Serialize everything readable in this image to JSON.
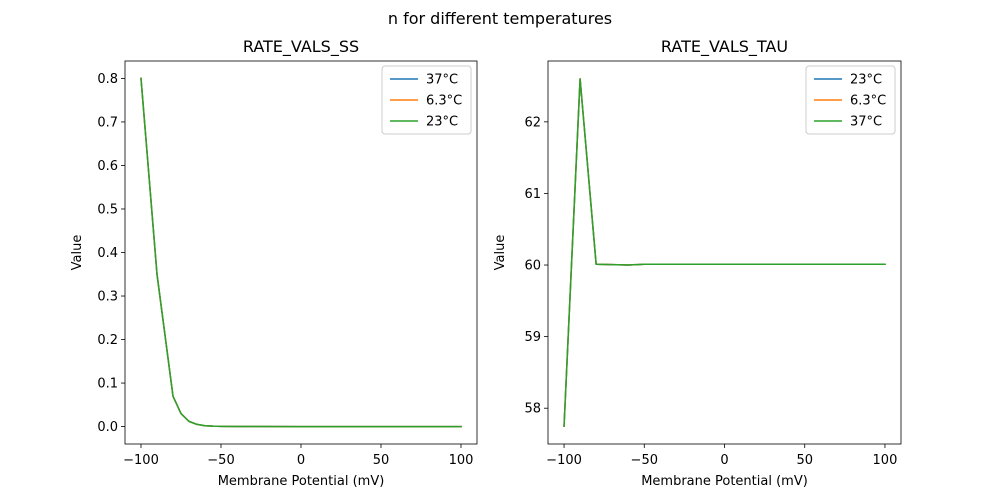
{
  "figure": {
    "title": "n for different temperatures"
  },
  "colors": {
    "blue": "#1f77b4",
    "orange": "#ff7f0e",
    "green": "#2ca02c"
  },
  "chart_data": [
    {
      "type": "line",
      "title": "RATE_VALS_SS",
      "xlabel": "Membrane Potential (mV)",
      "ylabel": "Value",
      "xlim": [
        -110,
        110
      ],
      "ylim": [
        -0.04,
        0.84
      ],
      "xticks": [
        -100,
        -50,
        0,
        50,
        100
      ],
      "xtick_labels": [
        "−100",
        "−50",
        "0",
        "50",
        "100"
      ],
      "yticks": [
        0.0,
        0.1,
        0.2,
        0.3,
        0.4,
        0.5,
        0.6,
        0.7,
        0.8
      ],
      "ytick_labels": [
        "0.0",
        "0.1",
        "0.2",
        "0.3",
        "0.4",
        "0.5",
        "0.6",
        "0.7",
        "0.8"
      ],
      "legend_position": "top-right",
      "series": [
        {
          "name": "37°C",
          "color": "#1f77b4",
          "x": [
            -100,
            -90,
            -80,
            -75,
            -70,
            -65,
            -60,
            -55,
            -50,
            -40,
            -30,
            0,
            50,
            100
          ],
          "y": [
            0.8,
            0.35,
            0.07,
            0.03,
            0.012,
            0.005,
            0.002,
            0.001,
            0.0005,
            0.0002,
            0.0001,
            0,
            0,
            0
          ]
        },
        {
          "name": "6.3°C",
          "color": "#ff7f0e",
          "x": [
            -100,
            -90,
            -80,
            -75,
            -70,
            -65,
            -60,
            -55,
            -50,
            -40,
            -30,
            0,
            50,
            100
          ],
          "y": [
            0.8,
            0.35,
            0.07,
            0.03,
            0.012,
            0.005,
            0.002,
            0.001,
            0.0005,
            0.0002,
            0.0001,
            0,
            0,
            0
          ]
        },
        {
          "name": "23°C",
          "color": "#2ca02c",
          "x": [
            -100,
            -90,
            -80,
            -75,
            -70,
            -65,
            -60,
            -55,
            -50,
            -40,
            -30,
            0,
            50,
            100
          ],
          "y": [
            0.8,
            0.35,
            0.07,
            0.03,
            0.012,
            0.005,
            0.002,
            0.001,
            0.0005,
            0.0002,
            0.0001,
            0,
            0,
            0
          ]
        }
      ]
    },
    {
      "type": "line",
      "title": "RATE_VALS_TAU",
      "xlabel": "Membrane Potential (mV)",
      "ylabel": "Value",
      "xlim": [
        -110,
        110
      ],
      "ylim": [
        57.5,
        62.85
      ],
      "xticks": [
        -100,
        -50,
        0,
        50,
        100
      ],
      "xtick_labels": [
        "−100",
        "−50",
        "0",
        "50",
        "100"
      ],
      "yticks": [
        58,
        59,
        60,
        61,
        62
      ],
      "ytick_labels": [
        "58",
        "59",
        "60",
        "61",
        "62"
      ],
      "legend_position": "top-right",
      "series": [
        {
          "name": "23°C",
          "color": "#1f77b4",
          "x": [
            -100,
            -90,
            -80,
            -60,
            -50,
            0,
            50,
            100
          ],
          "y": [
            57.75,
            62.6,
            60.01,
            60.0,
            60.01,
            60.01,
            60.01,
            60.01
          ]
        },
        {
          "name": "6.3°C",
          "color": "#ff7f0e",
          "x": [
            -100,
            -90,
            -80,
            -60,
            -50,
            0,
            50,
            100
          ],
          "y": [
            57.75,
            62.6,
            60.01,
            60.0,
            60.01,
            60.01,
            60.01,
            60.01
          ]
        },
        {
          "name": "37°C",
          "color": "#2ca02c",
          "x": [
            -100,
            -90,
            -80,
            -60,
            -50,
            0,
            50,
            100
          ],
          "y": [
            57.75,
            62.6,
            60.01,
            60.0,
            60.01,
            60.01,
            60.01,
            60.01
          ]
        }
      ]
    }
  ]
}
